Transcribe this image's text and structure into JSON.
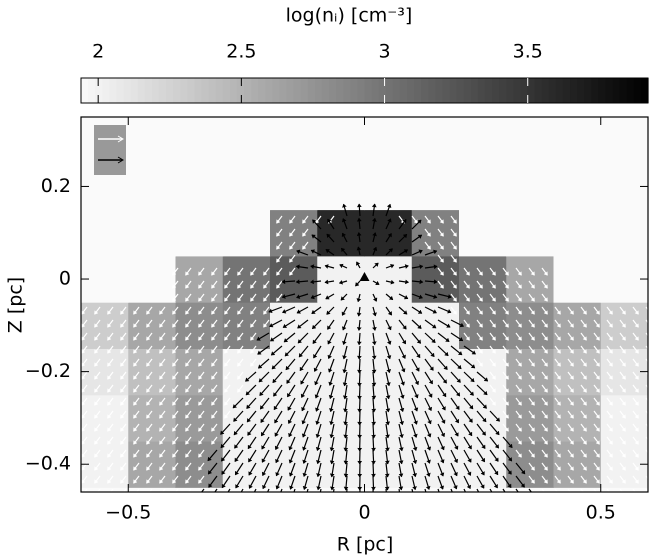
{
  "chart_data": {
    "type": "heatmap",
    "colorbar_label": "log(nᵢ) [cm⁻³]",
    "clim": [
      1.94,
      3.92
    ],
    "cticks": [
      2,
      2.5,
      3,
      3.5
    ],
    "xlabel": "R [pc]",
    "ylabel": "Z [pc]",
    "xlim": [
      -0.6,
      0.6
    ],
    "ylim": [
      -0.46,
      0.35
    ],
    "xticks": [
      {
        "value": -0.5,
        "label": "−0.5"
      },
      0,
      0.5
    ],
    "yticks": [
      {
        "value": -0.4,
        "label": "−0.4"
      },
      {
        "value": -0.2,
        "label": "−0.2"
      },
      0,
      0.2
    ],
    "x": [
      -0.55,
      -0.45,
      -0.35,
      -0.25,
      -0.15,
      -0.05,
      0.05,
      0.15,
      0.25,
      0.35,
      0.45,
      0.55
    ],
    "y": [
      -0.4,
      -0.3,
      -0.2,
      -0.1,
      0.0,
      0.1,
      0.2,
      0.3
    ],
    "z": [
      [
        2.0,
        2.6,
        2.8,
        2.0,
        2.0,
        2.0,
        2.0,
        2.0,
        2.0,
        2.8,
        2.6,
        2.0
      ],
      [
        2.0,
        2.5,
        2.7,
        2.0,
        2.0,
        2.0,
        2.0,
        2.0,
        2.0,
        2.7,
        2.5,
        2.0
      ],
      [
        2.1,
        2.4,
        2.6,
        2.0,
        2.0,
        2.0,
        2.0,
        2.0,
        2.0,
        2.6,
        2.4,
        2.1
      ],
      [
        2.3,
        2.6,
        2.8,
        2.9,
        2.0,
        2.0,
        2.0,
        2.0,
        2.9,
        2.8,
        2.6,
        2.3
      ],
      [
        1.94,
        1.94,
        2.6,
        3.0,
        3.2,
        2.0,
        2.0,
        3.2,
        3.0,
        2.6,
        1.94,
        1.94
      ],
      [
        1.94,
        1.94,
        1.94,
        1.94,
        2.9,
        3.6,
        3.6,
        2.9,
        1.94,
        1.94,
        1.94,
        1.94
      ],
      [
        1.94,
        1.94,
        1.94,
        1.94,
        1.94,
        1.94,
        1.94,
        1.94,
        1.94,
        1.94,
        1.94,
        1.94
      ],
      [
        1.94,
        1.94,
        1.94,
        1.94,
        1.94,
        1.94,
        1.94,
        1.94,
        1.94,
        1.94,
        1.94,
        1.94
      ]
    ]
  }
}
